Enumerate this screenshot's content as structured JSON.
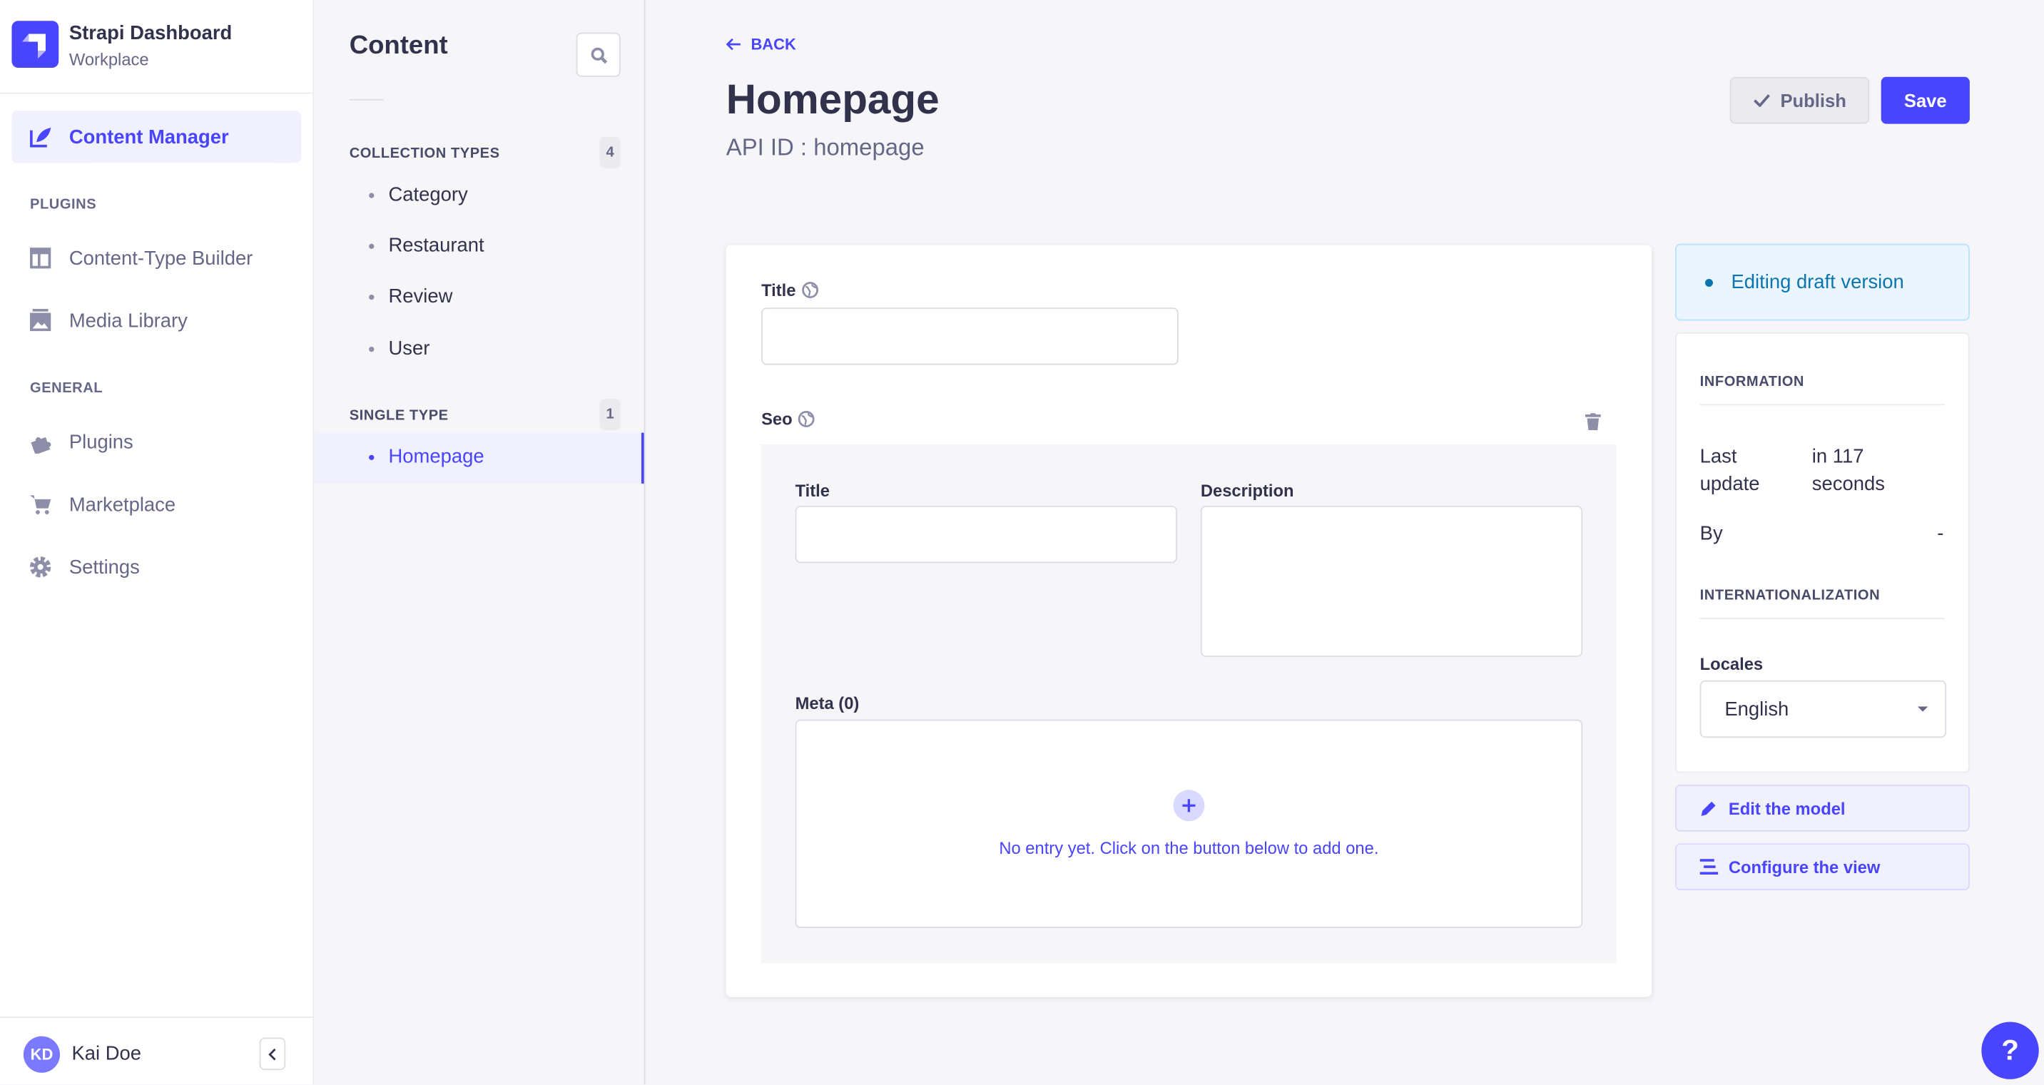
{
  "brand": {
    "title": "Strapi Dashboard",
    "subtitle": "Workplace"
  },
  "nav": {
    "content_manager": "Content Manager",
    "plugins_section": "PLUGINS",
    "ctb": "Content-Type Builder",
    "media": "Media Library",
    "general_section": "GENERAL",
    "plugins": "Plugins",
    "marketplace": "Marketplace",
    "settings": "Settings"
  },
  "user": {
    "initials": "KD",
    "name": "Kai Doe"
  },
  "panel": {
    "title": "Content",
    "collection_label": "COLLECTION TYPES",
    "collection_count": "4",
    "collections": [
      "Category",
      "Restaurant",
      "Review",
      "User"
    ],
    "single_label": "SINGLE TYPE",
    "single_count": "1",
    "singles": [
      "Homepage"
    ]
  },
  "header": {
    "back": "BACK",
    "title": "Homepage",
    "api_id": "API ID : homepage",
    "publish": "Publish",
    "save": "Save"
  },
  "form": {
    "title_label": "Title",
    "seo_label": "Seo",
    "seo_title_label": "Title",
    "seo_description_label": "Description",
    "meta_label": "Meta (0)",
    "meta_empty": "No entry yet. Click on the button below to add one."
  },
  "aside": {
    "draft": "Editing draft version",
    "info_title": "INFORMATION",
    "last_update_label": "Last update",
    "last_update_value": "in 117 seconds",
    "by_label": "By",
    "by_value": "-",
    "i18n_title": "INTERNATIONALIZATION",
    "locales_label": "Locales",
    "locale_value": "English",
    "edit_model": "Edit the model",
    "configure_view": "Configure the view"
  },
  "help": "?",
  "colors": {
    "primary": "#4945ff",
    "draft_text": "#0c75af",
    "draft_bg": "#eaf5ff"
  }
}
